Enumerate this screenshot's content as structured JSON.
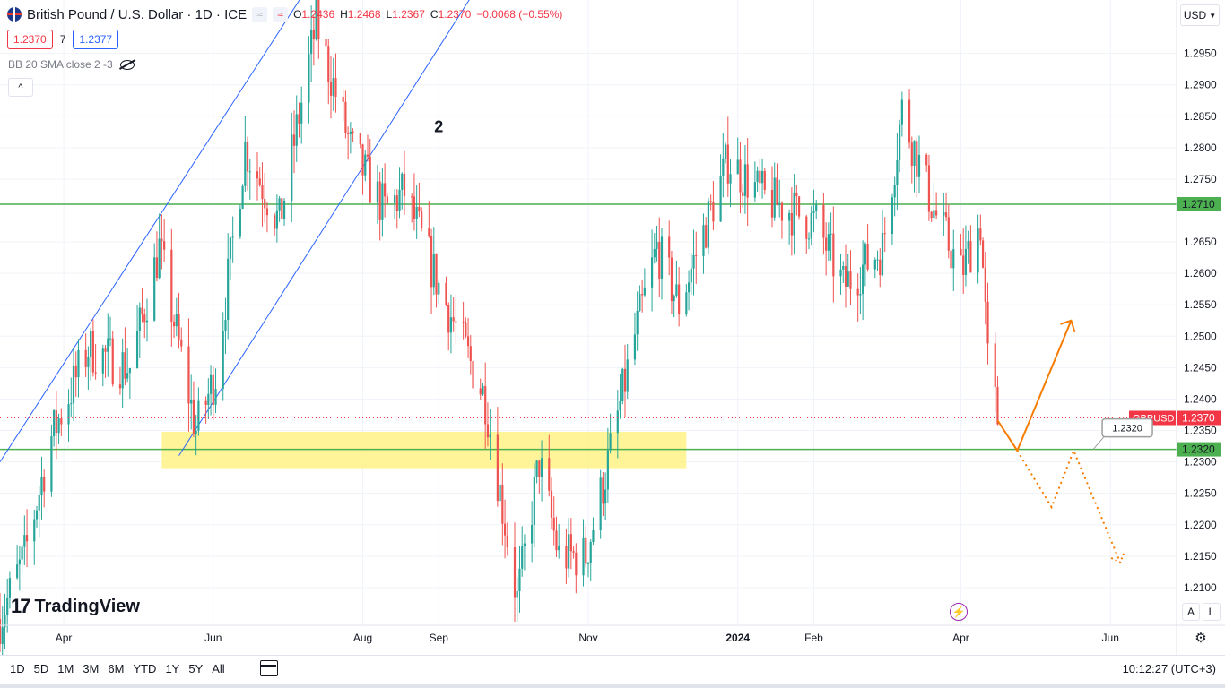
{
  "header": {
    "symbol_title": "British Pound / U.S. Dollar · 1D · ICE",
    "btn_compare": "≈",
    "btn_indicators": "≈",
    "ohlc": {
      "o_label": "O",
      "o": "1.2436",
      "h_label": "H",
      "h": "1.2468",
      "l_label": "L",
      "l": "1.2367",
      "c_label": "C",
      "c": "1.2370",
      "change": "−0.0068 (−0.55%)"
    },
    "sell_price": "1.2370",
    "spread": "7",
    "buy_price": "1.2377",
    "indicator": "BB 20 SMA close 2 -3",
    "collapse_icon": "^"
  },
  "currency": "USD",
  "logo_text": "TradingView",
  "logo_mark": "17",
  "scale_buttons": {
    "auto": "A",
    "log": "L"
  },
  "bottom": {
    "ranges": [
      "1D",
      "5D",
      "1M",
      "3M",
      "6M",
      "YTD",
      "1Y",
      "5Y",
      "All"
    ],
    "clock": "10:12:27 (UTC+3)"
  },
  "colors": {
    "up": "#26a69a",
    "down": "#ef5350",
    "level": "#4caf50",
    "channel": "#2962ff",
    "zone": "#fff176",
    "projection": "#f57c00",
    "last": "#f23645"
  },
  "chart_data": {
    "type": "candlestick",
    "symbol": "GBPUSD",
    "x_ticks": [
      "Apr",
      "Jun",
      "Aug",
      "Sep",
      "Nov",
      "2024",
      "Feb",
      "Apr",
      "Jun"
    ],
    "y_ticks": [
      "1.2950",
      "1.2900",
      "1.2850",
      "1.2800",
      "1.2750",
      "1.2650",
      "1.2600",
      "1.2550",
      "1.2500",
      "1.2450",
      "1.2400",
      "1.2350",
      "1.2300",
      "1.2250",
      "1.2200",
      "1.2150",
      "1.2100"
    ],
    "ylim": [
      1.204,
      1.3035
    ],
    "xlim_days": [
      "2023-03-06",
      "2024-06-28"
    ],
    "annotation_label": "2",
    "horizontal_levels": [
      {
        "label": "1.2710",
        "value": 1.271
      },
      {
        "label": "1.2320",
        "value": 1.232
      }
    ],
    "last_price": {
      "label": "GBPUSD",
      "value": 1.237,
      "text": "1.2370"
    },
    "zone": {
      "from": "2023-05-11",
      "to": "2023-12-11",
      "low": 1.229,
      "high": 1.2348
    },
    "callout": {
      "text": "1.2320",
      "date": "2024-05-25",
      "value": 1.232
    },
    "channel": [
      {
        "p1": [
          "2023-03-06",
          1.23
        ],
        "p2": [
          "2023-07-17",
          1.31
        ]
      },
      {
        "p1": [
          "2023-05-18",
          1.231
        ],
        "p2": [
          "2023-09-24",
          1.31
        ]
      }
    ],
    "projection_solid": [
      [
        "2024-04-16",
        1.2366
      ],
      [
        "2024-04-24",
        1.2318
      ],
      [
        "2024-05-16",
        1.2525
      ]
    ],
    "projection_dotted": [
      [
        "2024-04-24",
        1.2318
      ],
      [
        "2024-05-08",
        1.2228
      ],
      [
        "2024-05-17",
        1.2318
      ],
      [
        "2024-06-05",
        1.214
      ]
    ],
    "trend_anchors": [
      [
        "2023-03-06",
        1.205
      ],
      [
        "2023-03-16",
        1.215
      ],
      [
        "2023-03-27",
        1.234
      ],
      [
        "2023-04-11",
        1.248
      ],
      [
        "2023-04-28",
        1.245
      ],
      [
        "2023-05-10",
        1.264
      ],
      [
        "2023-05-25",
        1.235
      ],
      [
        "2023-06-02",
        1.244
      ],
      [
        "2023-06-14",
        1.28
      ],
      [
        "2023-06-28",
        1.268
      ],
      [
        "2023-07-13",
        1.3
      ],
      [
        "2023-07-27",
        1.28
      ],
      [
        "2023-08-10",
        1.27
      ],
      [
        "2023-08-18",
        1.273
      ],
      [
        "2023-09-01",
        1.258
      ],
      [
        "2023-09-20",
        1.24
      ],
      [
        "2023-10-03",
        1.208
      ],
      [
        "2023-10-12",
        1.23
      ],
      [
        "2023-10-20",
        1.215
      ],
      [
        "2023-10-31",
        1.215
      ],
      [
        "2023-11-08",
        1.228
      ],
      [
        "2023-11-20",
        1.25
      ],
      [
        "2023-11-29",
        1.264
      ],
      [
        "2023-12-08",
        1.255
      ],
      [
        "2023-12-28",
        1.278
      ],
      [
        "2024-01-12",
        1.272
      ],
      [
        "2024-02-02",
        1.268
      ],
      [
        "2024-02-13",
        1.258
      ],
      [
        "2024-02-29",
        1.264
      ],
      [
        "2024-03-08",
        1.286
      ],
      [
        "2024-03-21",
        1.27
      ],
      [
        "2024-04-01",
        1.26
      ],
      [
        "2024-04-09",
        1.268
      ],
      [
        "2024-04-12",
        1.246
      ],
      [
        "2024-04-16",
        1.237
      ]
    ]
  }
}
